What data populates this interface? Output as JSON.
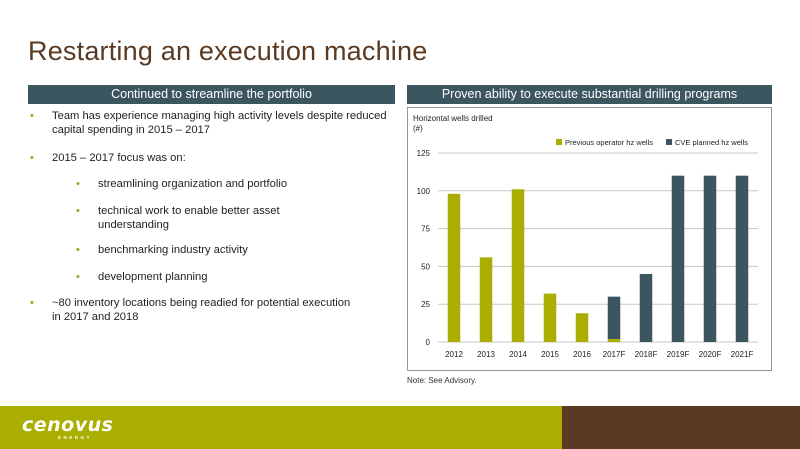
{
  "slide": {
    "title": "Restarting an execution machine",
    "left_panel": {
      "header": "Continued to streamline the portfolio",
      "bullets": [
        "Team has experience managing high activity levels despite reduced capital spending in 2015 – 2017",
        "2015 – 2017 focus was on:",
        "~80 inventory locations being readied for potential execution in 2017 and 2018"
      ],
      "sub_bullets": [
        "streamlining organization and portfolio",
        "technical work to enable better asset understanding",
        "benchmarking industry activity",
        "development planning"
      ]
    },
    "right_panel": {
      "header": "Proven ability to execute substantial drilling programs",
      "note": "Note: See Advisory."
    },
    "footer": {
      "logo_text": "cenovus",
      "logo_subtext": "ENERGY"
    }
  },
  "colors": {
    "title": "#5a3a22",
    "header_bg": "#3c5660",
    "previous_operator": "#a9ae00",
    "cve_planned": "#3c5660",
    "footer_left": "#a9ae00",
    "footer_right": "#5a3a22"
  },
  "chart_data": {
    "type": "bar",
    "stacked": true,
    "title": "",
    "ylabel": "Horizontal wells drilled (#)",
    "xlabel": "",
    "ylim": [
      0,
      125
    ],
    "yticks": [
      0,
      25,
      50,
      75,
      100,
      125
    ],
    "grid": true,
    "legend_position": "top-right",
    "categories": [
      "2012",
      "2013",
      "2014",
      "2015",
      "2016",
      "2017F",
      "2018F",
      "2019F",
      "2020F",
      "2021F"
    ],
    "series": [
      {
        "name": "Previous operator hz wells",
        "values": [
          98,
          56,
          101,
          32,
          19,
          2,
          0,
          0,
          0,
          0
        ]
      },
      {
        "name": "CVE planned hz wells",
        "values": [
          0,
          0,
          0,
          0,
          0,
          28,
          45,
          110,
          110,
          110
        ]
      }
    ]
  }
}
